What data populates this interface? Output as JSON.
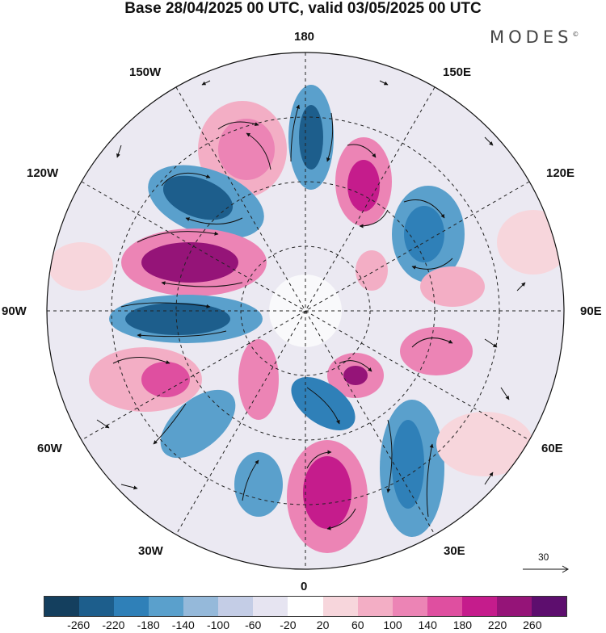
{
  "title": "Base 28/04/2025 00 UTC, valid 03/05/2025 00 UTC",
  "brand": "MODES",
  "brand_mark": "©",
  "longitude_labels": {
    "top": "180",
    "bottom": "0",
    "left": "90W",
    "right": "90E",
    "upper_left_1": "150W",
    "upper_left_2": "120W",
    "upper_right_1": "150E",
    "upper_right_2": "120E",
    "lower_left_1": "60W",
    "lower_left_2": "30W",
    "lower_right_1": "60E",
    "lower_right_2": "30E"
  },
  "reference_vector": "30",
  "colorbar": {
    "colors": [
      "#143f5e",
      "#1d5e8c",
      "#2f80b8",
      "#5aa0cc",
      "#95b9da",
      "#c4cde6",
      "#e6e4f1",
      "#ffffff",
      "#f7d6dc",
      "#f3aec5",
      "#ec84b5",
      "#df4fa0",
      "#c51c8c",
      "#951478",
      "#5d0e6e"
    ],
    "tick_labels": [
      "-260",
      "-220",
      "-180",
      "-140",
      "-100",
      "-60",
      "-20",
      "20",
      "60",
      "100",
      "140",
      "180",
      "220",
      "260"
    ]
  }
}
